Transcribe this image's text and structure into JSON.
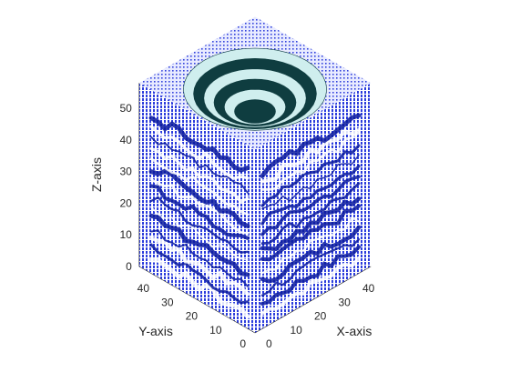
{
  "chart_data": {
    "type": "scatter",
    "subtype": "3d-isometric-voxel-volume",
    "title": "",
    "xlabel": "X-axis",
    "ylabel": "Y-axis",
    "zlabel": "Z-axis",
    "xlim": [
      0,
      48
    ],
    "ylim": [
      0,
      48
    ],
    "zlim": [
      0,
      58
    ],
    "xticks": [
      0,
      10,
      20,
      30,
      40
    ],
    "yticks": [
      0,
      10,
      20,
      30,
      40
    ],
    "zticks": [
      0,
      10,
      20,
      30,
      40,
      50
    ],
    "xtick_labels": [
      "0",
      "10",
      "20",
      "30",
      "40"
    ],
    "ytick_labels": [
      "0",
      "10",
      "20",
      "30",
      "40"
    ],
    "ztick_labels": [
      "0",
      "10",
      "20",
      "30",
      "40",
      "50"
    ],
    "grid": false,
    "legend": "none",
    "colors": {
      "voxel_points": "#1f2fd6",
      "voxel_points_dense": "#0b1a9e",
      "surface_light": "#cfeeee",
      "surface_dark": "#0f3d40",
      "axis": "#262626"
    }
  }
}
